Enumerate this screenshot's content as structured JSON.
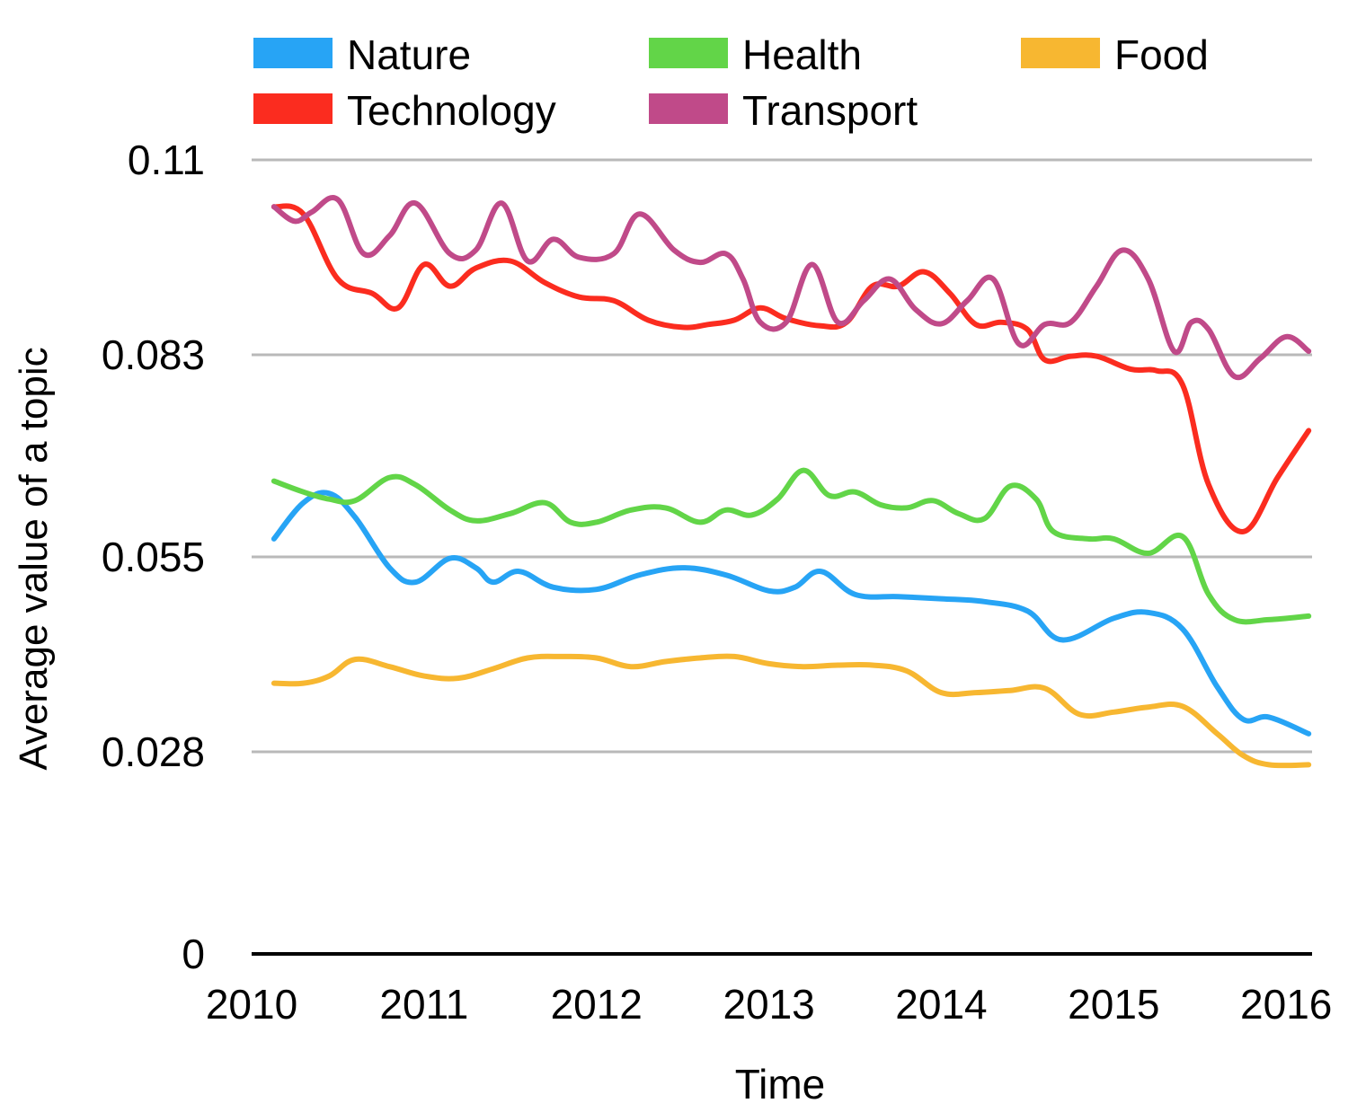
{
  "chart_data": {
    "type": "line",
    "title": "",
    "xlabel": "Time",
    "ylabel": "Average value of a topic",
    "xlim": [
      2010,
      2016.15
    ],
    "ylim": [
      0,
      0.11
    ],
    "yticks": [
      "0",
      "0.028",
      "0.055",
      "0.083",
      "0.11"
    ],
    "ytick_values": [
      0,
      0.028,
      0.055,
      0.083,
      0.11
    ],
    "xticks": [
      "2010",
      "2011",
      "2012",
      "2013",
      "2014",
      "2015",
      "2016"
    ],
    "xtick_values": [
      2010,
      2011,
      2012,
      2013,
      2014,
      2015,
      2016
    ],
    "grid": true,
    "legend_position": "top",
    "series": [
      {
        "name": "Nature",
        "color": "#27a4f5",
        "x": [
          2010.13,
          2010.3,
          2010.45,
          2010.6,
          2010.8,
          2010.95,
          2011.15,
          2011.3,
          2011.4,
          2011.55,
          2011.75,
          2012.0,
          2012.25,
          2012.5,
          2012.75,
          2013.0,
          2013.15,
          2013.3,
          2013.5,
          2013.75,
          2014.0,
          2014.25,
          2014.5,
          2014.7,
          2015.0,
          2015.2,
          2015.4,
          2015.6,
          2015.75,
          2015.9,
          2016.13
        ],
        "y": [
          0.0575,
          0.0625,
          0.0638,
          0.0605,
          0.0535,
          0.0515,
          0.0548,
          0.0535,
          0.0515,
          0.053,
          0.0508,
          0.0505,
          0.0525,
          0.0535,
          0.0525,
          0.0503,
          0.0508,
          0.053,
          0.0498,
          0.0495,
          0.0492,
          0.0488,
          0.0475,
          0.0435,
          0.0465,
          0.0473,
          0.045,
          0.037,
          0.0325,
          0.0328,
          0.0305
        ]
      },
      {
        "name": "Health",
        "color": "#62d548",
        "x": [
          2010.13,
          2010.3,
          2010.45,
          2010.6,
          2010.8,
          2010.95,
          2011.15,
          2011.3,
          2011.5,
          2011.7,
          2011.85,
          2012.0,
          2012.2,
          2012.4,
          2012.6,
          2012.75,
          2012.9,
          2013.05,
          2013.2,
          2013.35,
          2013.5,
          2013.65,
          2013.8,
          2013.95,
          2014.1,
          2014.25,
          2014.4,
          2014.55,
          2014.65,
          2014.85,
          2015.0,
          2015.2,
          2015.4,
          2015.55,
          2015.7,
          2015.9,
          2016.13
        ],
        "y": [
          0.0655,
          0.064,
          0.063,
          0.0628,
          0.066,
          0.065,
          0.0615,
          0.06,
          0.061,
          0.0625,
          0.0598,
          0.0598,
          0.0615,
          0.0618,
          0.0598,
          0.0615,
          0.0608,
          0.063,
          0.067,
          0.0635,
          0.064,
          0.0622,
          0.0618,
          0.0628,
          0.061,
          0.0603,
          0.0648,
          0.063,
          0.0585,
          0.0575,
          0.0575,
          0.0555,
          0.0578,
          0.0498,
          0.0463,
          0.0463,
          0.0468
        ]
      },
      {
        "name": "Food",
        "color": "#f7b731",
        "x": [
          2010.13,
          2010.3,
          2010.45,
          2010.6,
          2010.8,
          2011.0,
          2011.2,
          2011.4,
          2011.6,
          2011.8,
          2012.0,
          2012.2,
          2012.4,
          2012.6,
          2012.8,
          2013.0,
          2013.2,
          2013.4,
          2013.6,
          2013.8,
          2014.0,
          2014.2,
          2014.4,
          2014.6,
          2014.8,
          2015.0,
          2015.2,
          2015.4,
          2015.6,
          2015.75,
          2015.9,
          2016.13
        ],
        "y": [
          0.0375,
          0.0375,
          0.0385,
          0.0408,
          0.0398,
          0.0385,
          0.0382,
          0.0395,
          0.041,
          0.0412,
          0.041,
          0.0398,
          0.0405,
          0.041,
          0.0412,
          0.0402,
          0.0398,
          0.04,
          0.04,
          0.0392,
          0.0362,
          0.0362,
          0.0365,
          0.0368,
          0.0332,
          0.0335,
          0.0342,
          0.0343,
          0.0305,
          0.0275,
          0.0262,
          0.0262
        ]
      },
      {
        "name": "Technology",
        "color": "#fb2c1f",
        "x": [
          2010.13,
          2010.3,
          2010.5,
          2010.7,
          2010.85,
          2011.0,
          2011.15,
          2011.3,
          2011.5,
          2011.7,
          2011.9,
          2012.1,
          2012.3,
          2012.5,
          2012.65,
          2012.8,
          2012.95,
          2013.1,
          2013.3,
          2013.45,
          2013.6,
          2013.75,
          2013.9,
          2014.05,
          2014.2,
          2014.35,
          2014.5,
          2014.6,
          2014.75,
          2014.9,
          2015.1,
          2015.25,
          2015.4,
          2015.55,
          2015.75,
          2015.95,
          2016.13
        ],
        "y": [
          0.1035,
          0.1025,
          0.0935,
          0.0915,
          0.0895,
          0.0955,
          0.0925,
          0.095,
          0.096,
          0.093,
          0.091,
          0.0905,
          0.0878,
          0.0868,
          0.0872,
          0.0878,
          0.0895,
          0.088,
          0.087,
          0.0875,
          0.0925,
          0.0925,
          0.0945,
          0.0915,
          0.0872,
          0.0875,
          0.0865,
          0.0823,
          0.0828,
          0.0828,
          0.081,
          0.0808,
          0.0788,
          0.065,
          0.0585,
          0.066,
          0.0725
        ]
      },
      {
        "name": "Transport",
        "color": "#c04a89",
        "x": [
          2010.13,
          2010.25,
          2010.35,
          2010.5,
          2010.65,
          2010.8,
          2010.95,
          2011.15,
          2011.3,
          2011.45,
          2011.6,
          2011.75,
          2011.9,
          2012.1,
          2012.25,
          2012.45,
          2012.6,
          2012.75,
          2012.85,
          2012.95,
          2013.1,
          2013.25,
          2013.4,
          2013.55,
          2013.7,
          2013.85,
          2014.0,
          2014.15,
          2014.3,
          2014.45,
          2014.6,
          2014.75,
          2014.9,
          2015.05,
          2015.2,
          2015.35,
          2015.45,
          2015.55,
          2015.7,
          2015.85,
          2016.0,
          2016.13
        ],
        "y": [
          0.1035,
          0.1015,
          0.1028,
          0.1045,
          0.097,
          0.0995,
          0.104,
          0.097,
          0.0975,
          0.104,
          0.096,
          0.099,
          0.0965,
          0.097,
          0.1025,
          0.0975,
          0.0958,
          0.097,
          0.0935,
          0.0875,
          0.0875,
          0.0955,
          0.0875,
          0.0905,
          0.0935,
          0.0893,
          0.0873,
          0.0905,
          0.0935,
          0.0845,
          0.0872,
          0.0875,
          0.0925,
          0.0975,
          0.0935,
          0.0835,
          0.0875,
          0.0865,
          0.08,
          0.0825,
          0.0855,
          0.0835
        ]
      }
    ]
  }
}
